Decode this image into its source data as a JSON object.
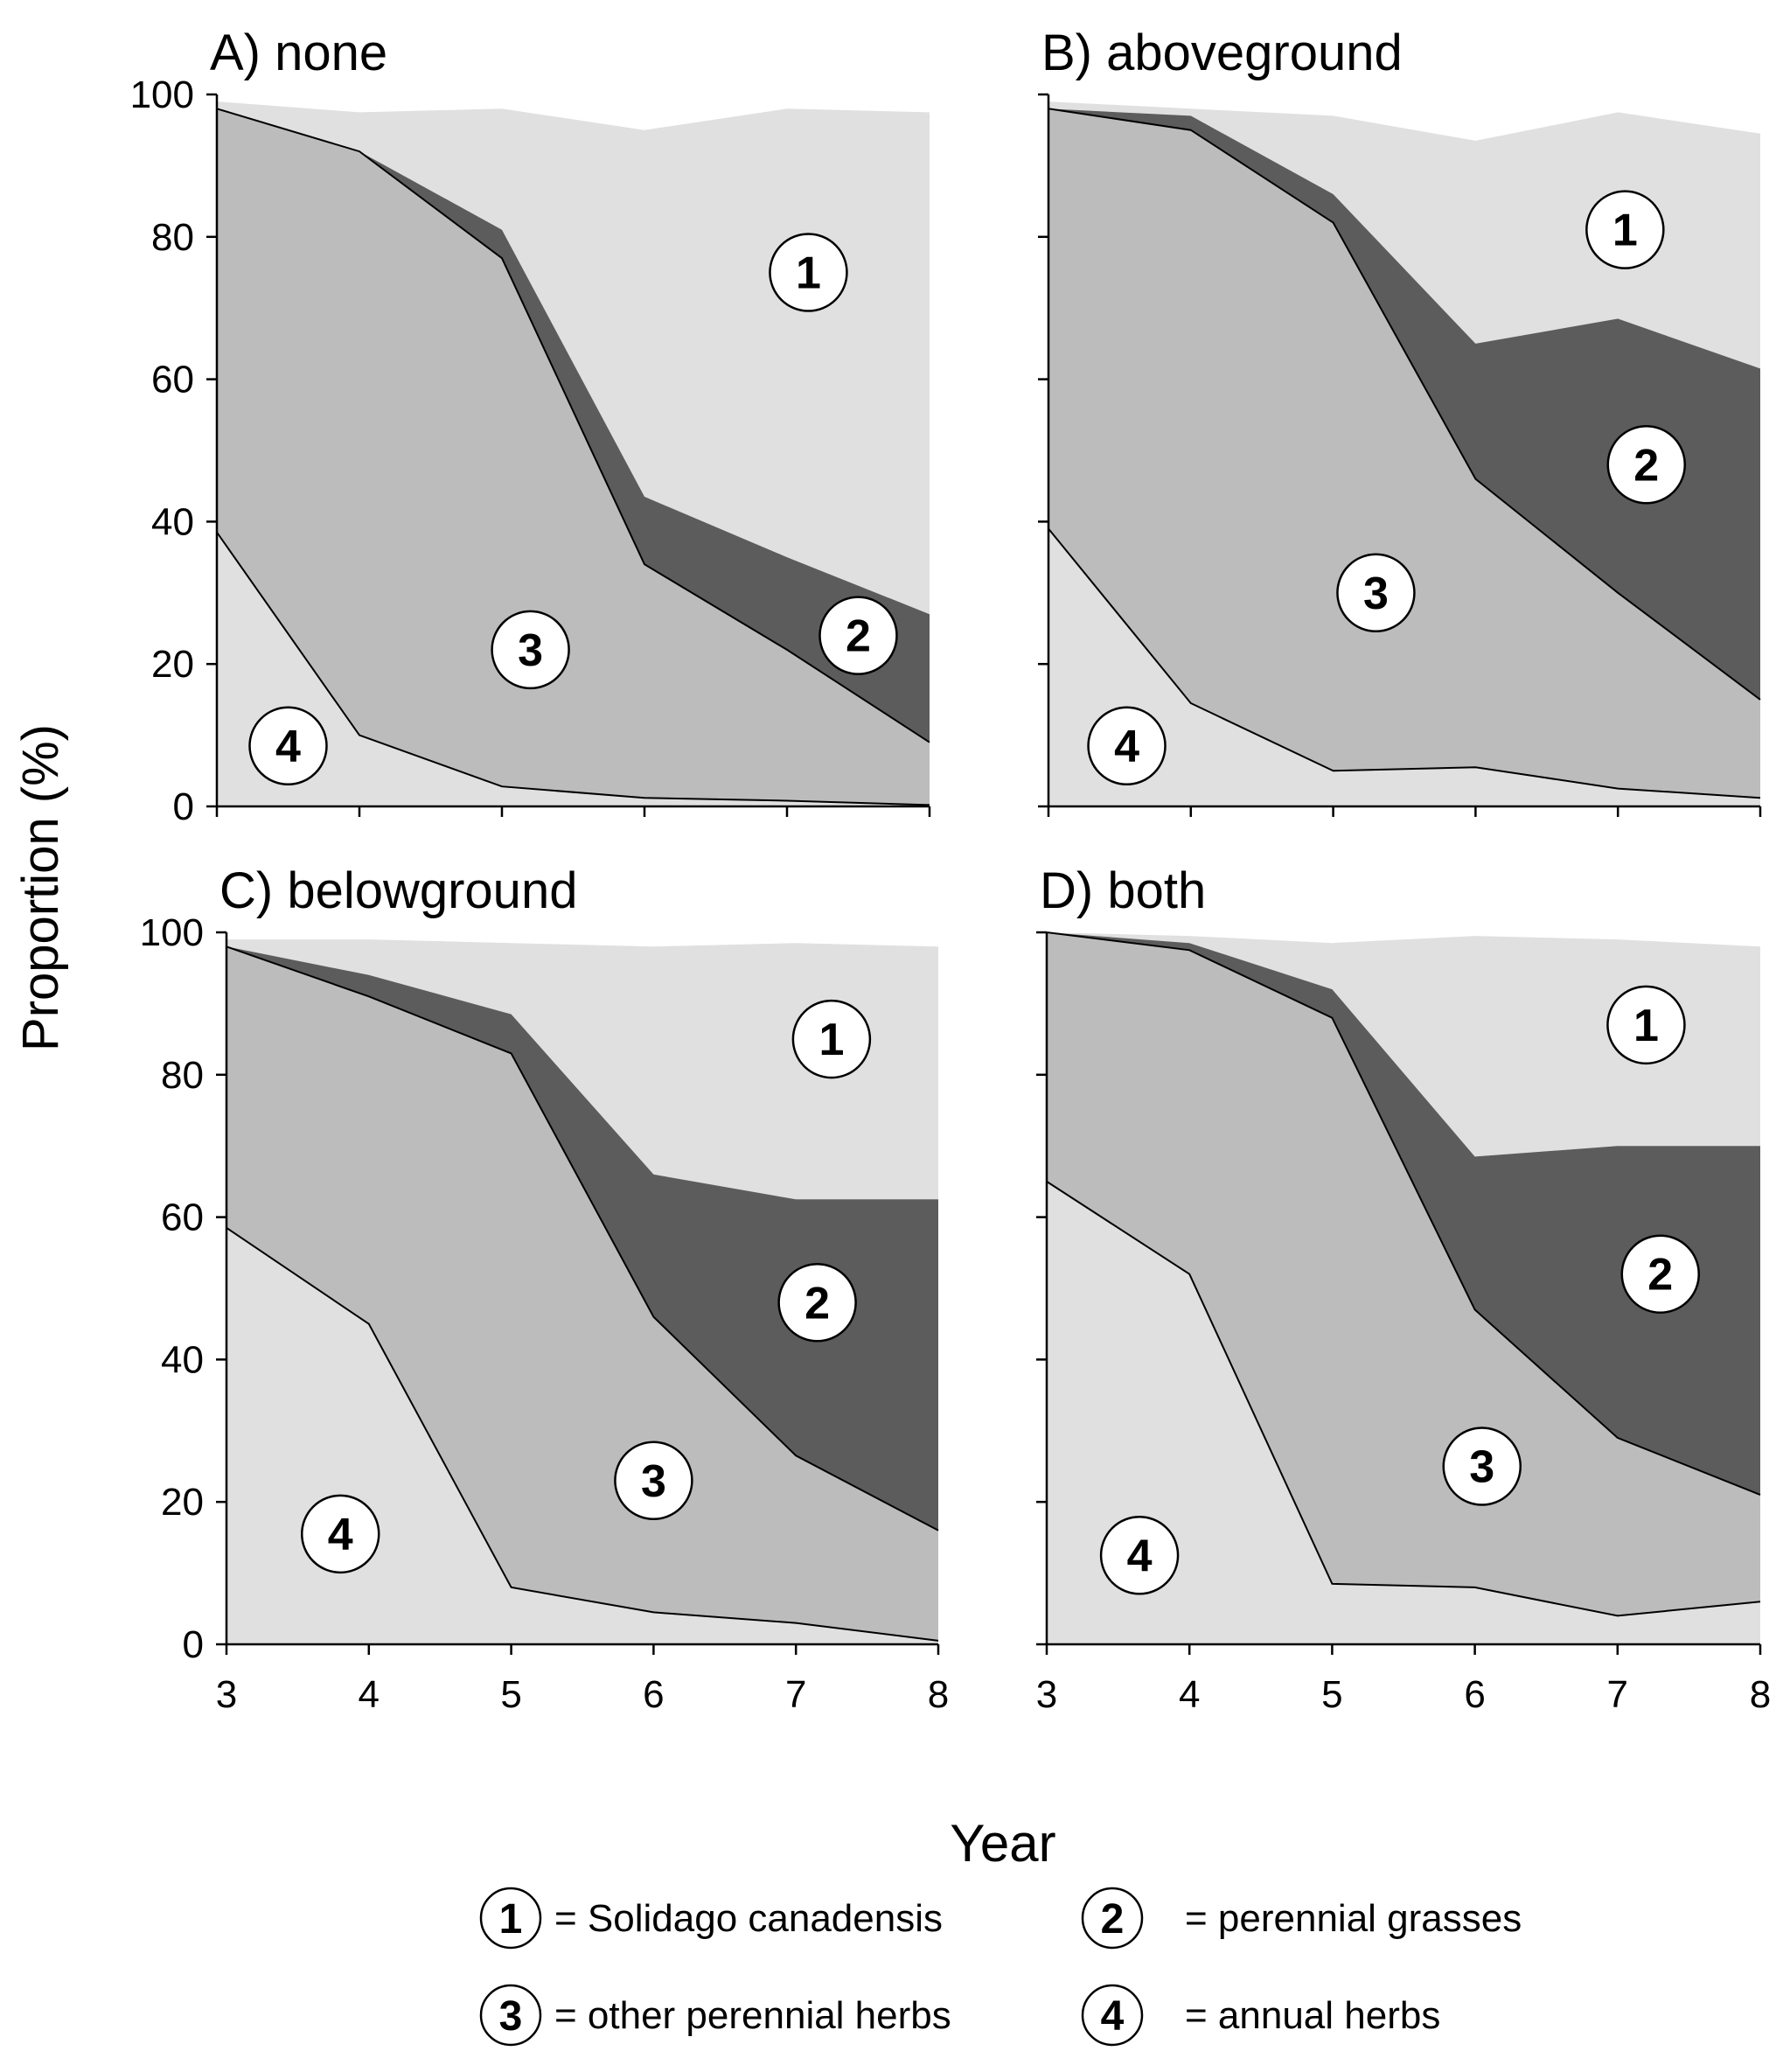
{
  "chart_data": {
    "type": "area",
    "ylabel": "Proportion (%)",
    "xlabel": "Year",
    "x": [
      3,
      4,
      5,
      6,
      7,
      8
    ],
    "xlim": [
      3,
      8
    ],
    "ylim": [
      0,
      100
    ],
    "yticks": [
      0,
      20,
      40,
      60,
      80,
      100
    ],
    "xticks": [
      3,
      4,
      5,
      6,
      7,
      8
    ],
    "legend": [
      {
        "key": "1",
        "text": "= Solidago canadensis",
        "color": "#e0e0e0"
      },
      {
        "key": "2",
        "text": "= perennial grasses",
        "color": "#5c5c5c"
      },
      {
        "key": "3",
        "text": "= other perennial herbs",
        "color": "#bcbcbc"
      },
      {
        "key": "4",
        "text": "= annual herbs",
        "color": "#e0e0e0"
      }
    ],
    "panels": [
      {
        "title": "A) none",
        "cumulative_top": {
          "annual_herbs": [
            38.5,
            10,
            2.8,
            1.2,
            0.8,
            0.2
          ],
          "other_perennial_herbs": [
            98,
            92,
            77,
            34,
            22,
            9
          ],
          "perennial_grasses": [
            98,
            92,
            81,
            43.5,
            35,
            27
          ],
          "solidago": [
            99,
            97.5,
            98,
            95,
            98,
            97.5
          ]
        },
        "labels": [
          {
            "key": "1",
            "x": 7.15,
            "y": 75
          },
          {
            "key": "2",
            "x": 7.5,
            "y": 24
          },
          {
            "key": "3",
            "x": 5.2,
            "y": 22
          },
          {
            "key": "4",
            "x": 3.5,
            "y": 8.5
          }
        ]
      },
      {
        "title": "B) aboveground",
        "cumulative_top": {
          "annual_herbs": [
            39,
            14.5,
            5,
            5.5,
            2.5,
            1.2
          ],
          "other_perennial_herbs": [
            98,
            95,
            82,
            46,
            30,
            15
          ],
          "perennial_grasses": [
            98,
            97,
            86,
            65,
            68.5,
            61.5
          ],
          "solidago": [
            99,
            98,
            97,
            93.5,
            97.5,
            94.5
          ]
        },
        "labels": [
          {
            "key": "1",
            "x": 7.05,
            "y": 81
          },
          {
            "key": "2",
            "x": 7.2,
            "y": 48
          },
          {
            "key": "3",
            "x": 5.3,
            "y": 30
          },
          {
            "key": "4",
            "x": 3.55,
            "y": 8.5
          }
        ]
      },
      {
        "title": "C) belowground",
        "cumulative_top": {
          "annual_herbs": [
            58.5,
            45,
            8,
            4.5,
            3,
            0.5
          ],
          "other_perennial_herbs": [
            98,
            91,
            83,
            46,
            26.5,
            16
          ],
          "perennial_grasses": [
            98,
            94,
            88.5,
            66,
            62.5,
            62.5
          ],
          "solidago": [
            99,
            99,
            98.5,
            98,
            98.5,
            98
          ]
        },
        "labels": [
          {
            "key": "1",
            "x": 7.25,
            "y": 85
          },
          {
            "key": "2",
            "x": 7.15,
            "y": 48
          },
          {
            "key": "3",
            "x": 6.0,
            "y": 23
          },
          {
            "key": "4",
            "x": 3.8,
            "y": 15.5
          }
        ]
      },
      {
        "title": "D) both",
        "cumulative_top": {
          "annual_herbs": [
            65,
            52,
            8.5,
            8,
            4,
            6
          ],
          "other_perennial_herbs": [
            100,
            97.5,
            88,
            47,
            29,
            21
          ],
          "perennial_grasses": [
            100,
            98.5,
            92,
            68.5,
            70,
            70
          ],
          "solidago": [
            100,
            99.5,
            98.5,
            99.5,
            99,
            98
          ]
        },
        "labels": [
          {
            "key": "1",
            "x": 7.2,
            "y": 87
          },
          {
            "key": "2",
            "x": 7.3,
            "y": 52
          },
          {
            "key": "3",
            "x": 6.05,
            "y": 25
          },
          {
            "key": "4",
            "x": 3.65,
            "y": 12.5
          }
        ]
      }
    ]
  }
}
